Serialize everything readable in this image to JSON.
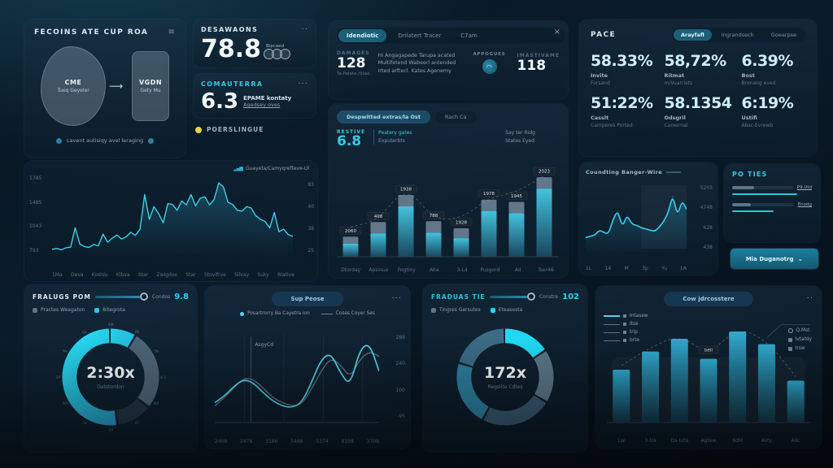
{
  "theme": {
    "accent": "#35cbe2",
    "bright": "#21d8f2",
    "yellow": "#e8d04b",
    "slate": "#5e7487",
    "panel_bg": "#0d1f2e"
  },
  "flow_panel": {
    "title": "FECOINS ATE CUP ROA",
    "menu": "≡",
    "blob": {
      "label": "CME",
      "sub": "Tueq Geyeler"
    },
    "arrow": "⟶",
    "target": {
      "label": "VGDN",
      "sub": "Gety Mu"
    },
    "caption": "Lavent autisiqy avel leraging"
  },
  "stat_cards": {
    "card1": {
      "title": "DESAWAONS",
      "menu": "··",
      "value": "78.8",
      "tag": "Bipcaed"
    },
    "card2": {
      "title": "COMAUTERRA",
      "menu": "···",
      "value": "6.3",
      "line1": "EPAME kontaty",
      "line2": "Agedsey oves"
    },
    "footnote": "POERSLINGUE"
  },
  "info_panel": {
    "tabs": [
      "Idendiotic",
      "Drilatert Tracer",
      "C7am"
    ],
    "close": "×",
    "damages": {
      "label": "DAMAGES",
      "value": "128",
      "sub": "Ta Palate /Stao"
    },
    "desc": [
      "Hi Angagapede Tarupa acated",
      "Multifetend Wabeerl antended",
      "Irted arftecl. Kates Agenemy"
    ],
    "approves": "APPOGUES",
    "mast": {
      "label": "IMASTIVAME",
      "value": "118"
    }
  },
  "pace_panel": {
    "title": "PACE",
    "tabs": [
      "Arayfafl",
      "Ingrandsech",
      "Goearpse"
    ],
    "kpis": [
      {
        "value": "58.33%",
        "label": "Invite",
        "sub": "Forsand"
      },
      {
        "value": "58,72%",
        "label": "Ritmat",
        "sub": "m/Vuarriets"
      },
      {
        "value": "6.39%",
        "label": "Bost",
        "sub": "Bronang eved"
      },
      {
        "value": "51:22%",
        "label": "Casslt",
        "sub": "Camperes Ported"
      },
      {
        "value": "58.1354",
        "label": "Odsgril",
        "sub": "Camernal"
      },
      {
        "value": "6:19%",
        "label": "Ustifi",
        "sub": "Absc-Evrewb"
      }
    ]
  },
  "po_ties": {
    "title": "PO TIES",
    "items": [
      {
        "label": "P9.Utd",
        "bar_pct": 36,
        "line_pct": 82
      },
      {
        "label": "Enodg",
        "bar_pct": 30,
        "line_pct": 52
      }
    ],
    "button": {
      "label": "Mia Duganotrg",
      "caret": "⌄"
    }
  },
  "chart_data": [
    {
      "id": "main-trend",
      "type": "area",
      "legend": "Guayeta/Camyqrefteve-Ul",
      "legend_icon": "bars-icon",
      "y_ticks_left": [
        "1785",
        "1485",
        "1043",
        "793"
      ],
      "y_ticks_right": [
        "83",
        "40",
        "38",
        "25"
      ],
      "x_ticks": [
        "1Ma",
        "Deva",
        "Koshlu",
        "Klbva",
        "Star",
        "Zwigdve",
        "Star",
        "Stovifrve",
        "Silvay",
        "Suky",
        "Rlatlve"
      ],
      "ylim": [
        250,
        1850
      ],
      "values": [
        310,
        330,
        300,
        345,
        360,
        790,
        430,
        370,
        355,
        420,
        390,
        650,
        470,
        560,
        630,
        540,
        590,
        690,
        620,
        760,
        1530,
        980,
        1260,
        1110,
        900,
        1330,
        1310,
        1180,
        1390,
        1300,
        1530,
        1280,
        1450,
        1480,
        1300,
        1420,
        1790,
        1700,
        1360,
        1310,
        1180,
        1160,
        1260,
        1230,
        1060,
        980,
        930,
        790,
        1130,
        700,
        760,
        640,
        600
      ]
    },
    {
      "id": "mid-bars",
      "type": "bar",
      "tabs": [
        "Despwitted extras/la Ost",
        "Rach Ca"
      ],
      "label": "RESTIVE",
      "value": "6.8",
      "legend": [
        "Peatery gates",
        "Exputerbts"
      ],
      "note": [
        "Say ter Ridg",
        "States Eyed"
      ],
      "categories": [
        "Dtorday",
        "Apsinue",
        "Pogtiny",
        "Aba",
        "3-L4",
        "Pusgord",
        "Ad",
        "Tser46"
      ],
      "badges": [
        "2060",
        "408",
        "1938",
        "788",
        "1928",
        "1978",
        "1945",
        "2023"
      ],
      "heights_pct": [
        26,
        45,
        80,
        46,
        37,
        74,
        71,
        103
      ]
    },
    {
      "id": "mini-trend",
      "type": "line",
      "title": "Coundting Banger-Wire",
      "y_ticks": [
        "5203",
        "4748",
        "628",
        "438"
      ],
      "x_ticks": [
        "1L",
        "14",
        "M",
        "3p",
        "Yu",
        "LA"
      ],
      "values": [
        18,
        20,
        22,
        30,
        26,
        24,
        48,
        62,
        34,
        55,
        40,
        38,
        34,
        32,
        30,
        28,
        34,
        44,
        58,
        88,
        52,
        78,
        64
      ]
    },
    {
      "id": "gauge-a",
      "type": "donut",
      "title": "FRALUGS POM",
      "center": "2:30x",
      "caption": "Datstordon",
      "slider_label": "Condos",
      "slider_value": "9.8",
      "legend": [
        {
          "label": "Practes Weagaton",
          "color": "#5e7487"
        },
        {
          "label": "Bitegrota",
          "color": "#2cc3e2"
        }
      ],
      "segments": [
        {
          "color": "accent-gradient",
          "pct": 9
        },
        {
          "color": "#4e6578",
          "pct": 27
        },
        {
          "color": "#223546",
          "pct": 12
        },
        {
          "color": "accent-gradient",
          "pct": 52
        }
      ],
      "ticks": [
        "4M",
        "9b",
        "Ya",
        "4-1",
        "B4",
        "xC",
        "2d",
        "7a",
        "Rd",
        "1P",
        "fw",
        "qa"
      ]
    },
    {
      "id": "dual-line",
      "type": "line",
      "header": "Sup Peose",
      "menu": "···",
      "marker": "AsgyCd",
      "legend": [
        {
          "label": "Posartrorry Ba Cayetra ion",
          "color": "#4fd8ef"
        },
        {
          "label": "Coses Coyer Ses",
          "color": "#6e8495"
        }
      ],
      "y_ticks": [
        "289",
        "240",
        "100",
        "-95"
      ],
      "x_ticks": [
        "2408",
        "2478",
        "3186",
        "5488",
        "5374",
        "8198",
        "3708"
      ],
      "series": [
        {
          "name": "Posartrorry Ba Cayetra ion",
          "values": [
            22,
            30,
            42,
            50,
            46,
            34,
            24,
            18,
            16,
            22,
            46,
            74,
            82,
            58,
            42,
            86,
            94,
            60
          ]
        },
        {
          "name": "Coses Coyer Ses",
          "values": [
            18,
            28,
            40,
            52,
            50,
            40,
            28,
            22,
            18,
            20,
            38,
            60,
            76,
            68,
            52,
            74,
            84,
            78
          ]
        }
      ]
    },
    {
      "id": "gauge-b",
      "type": "donut",
      "title": "FRADUAS TIE",
      "center": "172x",
      "caption": "Regslite Cdtes",
      "slider_label": "Constre",
      "slider_value": "102",
      "legend": [
        {
          "label": "Tingres Gersutes",
          "color": "#5e7487"
        },
        {
          "label": "Eteasesta",
          "color": "#21d8f2"
        }
      ],
      "segments": [
        {
          "color": "#21d8f2",
          "pct": 16
        },
        {
          "color": "#5a7587",
          "pct": 18
        },
        {
          "color": "#35586e",
          "pct": 24
        },
        {
          "color": "#2d7e9e",
          "pct": 22
        },
        {
          "color": "#3a6c85",
          "pct": 20
        }
      ]
    },
    {
      "id": "bottom-bars",
      "type": "bar",
      "header": "Cow jdrcosstere",
      "menu": "··",
      "legend_left": [
        "Intasew",
        "Itse",
        "trip",
        "brte"
      ],
      "legend_right": [
        "Q.Mst",
        "Ivtatdy",
        "Irsw"
      ],
      "tooltip": "bell",
      "tooltip_index": 3,
      "categories": [
        "Lw",
        "3-Ua",
        "Da-Iuta",
        "Agtew",
        "6dM",
        "Avty",
        "Adc"
      ],
      "heights_pct": [
        58,
        78,
        92,
        70,
        100,
        86,
        46
      ]
    }
  ]
}
